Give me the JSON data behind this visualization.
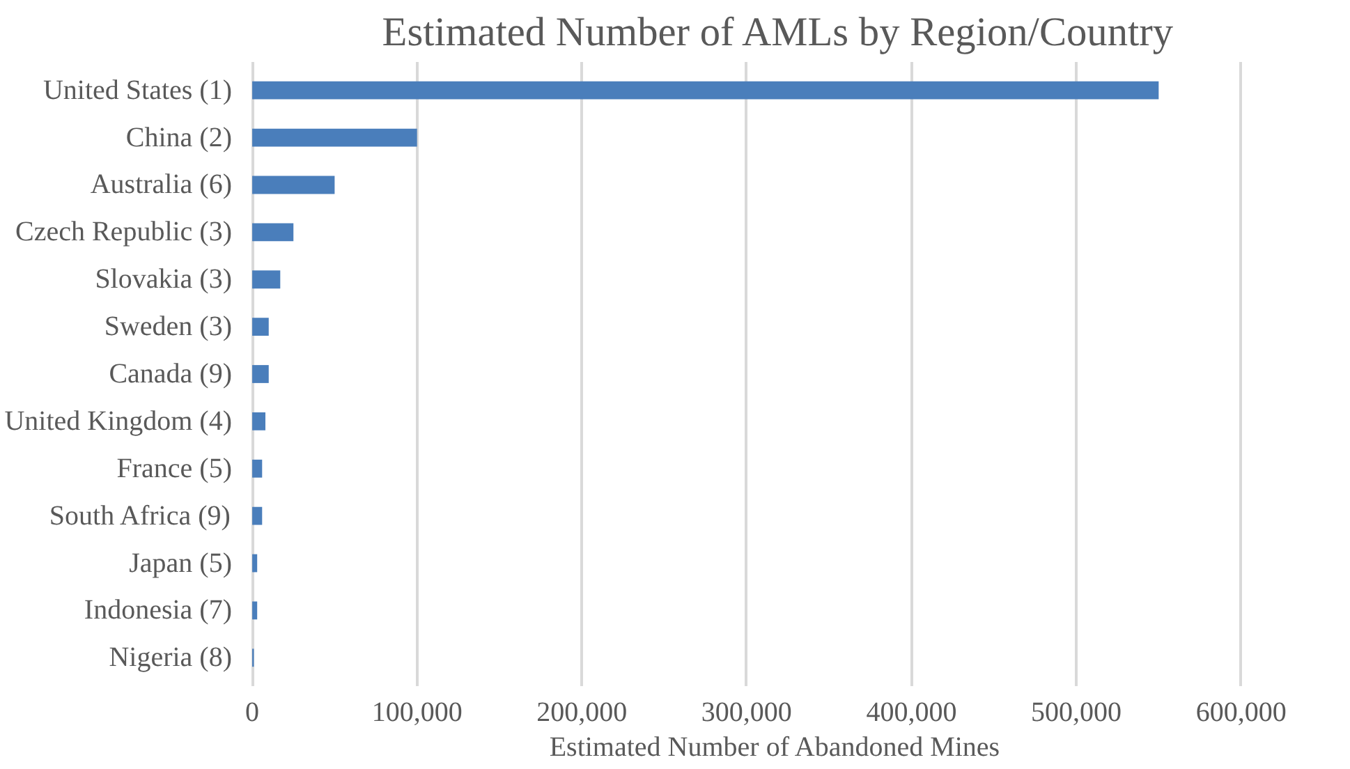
{
  "chart_data": {
    "type": "bar",
    "orientation": "horizontal",
    "title": "Estimated Number of AMLs by Region/Country",
    "xlabel": "Estimated Number of  Abandoned Mines",
    "categories": [
      "United States (1)",
      "China (2)",
      "Australia (6)",
      "Czech Republic (3)",
      "Slovakia (3)",
      "Sweden (3)",
      "Canada (9)",
      "United Kingdom (4)",
      "France (5)",
      "South Africa (9)",
      "Japan (5)",
      "Indonesia (7)",
      "Nigeria (8)"
    ],
    "values": [
      550000,
      100000,
      50000,
      25000,
      17000,
      10000,
      10000,
      8000,
      6000,
      6000,
      3000,
      3000,
      1000
    ],
    "color": "#4a7ebb",
    "xlim": [
      0,
      600000
    ],
    "xticks": [
      {
        "value": 0,
        "label": "0"
      },
      {
        "value": 100000,
        "label": "100,000"
      },
      {
        "value": 200000,
        "label": "200,000"
      },
      {
        "value": 300000,
        "label": "300,000"
      },
      {
        "value": 400000,
        "label": "400,000"
      },
      {
        "value": 500000,
        "label": "500,000"
      },
      {
        "value": 600000,
        "label": "600,000"
      }
    ],
    "grid": "x"
  }
}
